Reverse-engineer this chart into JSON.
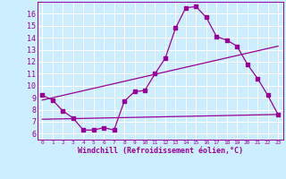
{
  "xlabel": "Windchill (Refroidissement éolien,°C)",
  "background_color": "#cceeff",
  "grid_color": "#ffffff",
  "line_color": "#990099",
  "xlim": [
    -0.5,
    23.5
  ],
  "ylim": [
    5.5,
    17.0
  ],
  "yticks": [
    6,
    7,
    8,
    9,
    10,
    11,
    12,
    13,
    14,
    15,
    16
  ],
  "xticks": [
    0,
    1,
    2,
    3,
    4,
    5,
    6,
    7,
    8,
    9,
    10,
    11,
    12,
    13,
    14,
    15,
    16,
    17,
    18,
    19,
    20,
    21,
    22,
    23
  ],
  "series1_x": [
    0,
    1,
    2,
    3,
    4,
    5,
    6,
    7,
    8,
    9,
    10,
    11,
    12,
    13,
    14,
    15,
    16,
    17,
    18,
    19,
    20,
    21,
    22,
    23
  ],
  "series1_y": [
    9.2,
    8.8,
    7.9,
    7.3,
    6.3,
    6.3,
    6.5,
    6.3,
    8.7,
    9.5,
    9.6,
    11.0,
    12.3,
    14.8,
    16.5,
    16.6,
    15.7,
    14.1,
    13.8,
    13.3,
    11.8,
    10.6,
    9.2,
    7.6
  ],
  "series2_x": [
    0,
    23
  ],
  "series2_y": [
    7.2,
    7.6
  ],
  "series3_x": [
    0,
    23
  ],
  "series3_y": [
    8.8,
    13.3
  ],
  "marker_size": 2.5,
  "line_width": 0.9
}
